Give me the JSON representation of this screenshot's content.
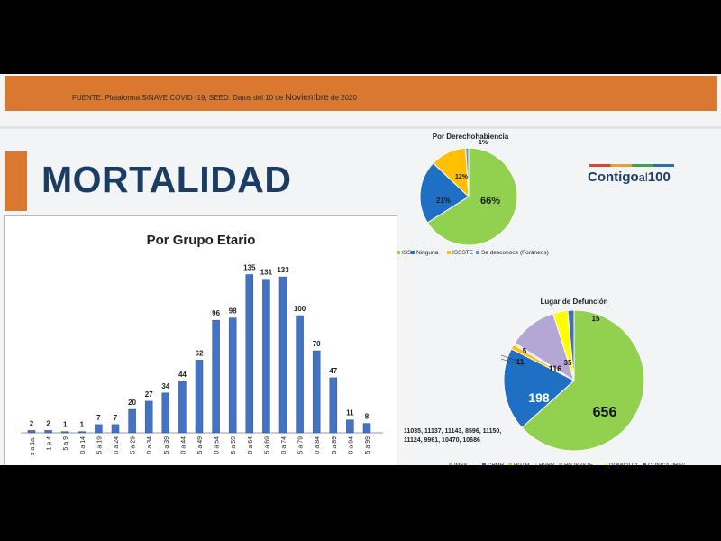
{
  "header": {
    "source_prefix": "FUENTE. Plataforma SINAVE COVID -19, SEED. Datos del 10 de",
    "source_month": "Noviembre",
    "source_suffix": "de 2020"
  },
  "title": "MORTALIDAD",
  "logo": {
    "main": "Contigo",
    "al": "al",
    "num": "100"
  },
  "colors": {
    "orange": "#d97830",
    "navy": "#1b3d63",
    "bar": "#4472c4",
    "green": "#92d050",
    "blue": "#1f6fc5",
    "yellow": "#ffc000",
    "lilac": "#b4a7d6"
  },
  "footnote": "11035, 11137, 11143, 8596, 11150, 11124, 9961, 10470, 10686",
  "chart_data": [
    {
      "type": "bar",
      "title": "Por Grupo Etario",
      "categories": [
        "< a 1a.",
        "1 a 4",
        "5 a 9",
        "10 a 14",
        "15 a 19",
        "20 a 24",
        "25 a 29",
        "30 a 34",
        "35 a 39",
        "40 a 44",
        "45 a 49",
        "50 a 54",
        "55 a 59",
        "60 a 64",
        "65 a 69",
        "70 a 74",
        "75 a 79",
        "80 a 84",
        "85 a 89",
        "90 a 94",
        "95 a 99"
      ],
      "tick_labels_visible": [
        "x a 1a.",
        "1 a 4",
        "5 a 9",
        "0 a 14",
        "5 a 19",
        "0 a 24",
        "5 a 29",
        "0 a 34",
        "5 a 39",
        "0 a 44",
        "5 a 49",
        "0 a 54",
        "5 a 59",
        "0 a 64",
        "5 a 69",
        "0 a 74",
        "5 a 79",
        "0 a 84",
        "5 a 89",
        "0 a 94",
        "5 a 99"
      ],
      "values": [
        2,
        2,
        1,
        1,
        7,
        7,
        20,
        27,
        34,
        44,
        62,
        96,
        98,
        135,
        131,
        133,
        100,
        70,
        47,
        11,
        8
      ],
      "ylim": [
        0,
        140
      ],
      "grid": false
    },
    {
      "type": "pie",
      "title": "Por Derechohabiencia",
      "slices": [
        {
          "label": "IMSS",
          "value": 66,
          "display": "66%",
          "color": "#92d050"
        },
        {
          "label": "Ninguna",
          "value": 21,
          "display": "21%",
          "color": "#1f6fc5"
        },
        {
          "label": "ISSSTE",
          "value": 12,
          "display": "12%",
          "color": "#ffc000"
        },
        {
          "label": "Se desconoce (Foráneos)",
          "value": 1,
          "display": "1%",
          "color": "#6b8fc9"
        }
      ],
      "legend_labels": [
        "ISS",
        "Ninguna",
        "ISSSTE",
        "Se desconoce (Foráneos)"
      ],
      "legend": "bottom"
    },
    {
      "type": "pie",
      "title": "Lugar de Defunción",
      "slices": [
        {
          "label": "IMSS",
          "value": 656,
          "display": "656",
          "color": "#92d050"
        },
        {
          "label": "CHMH",
          "value": 198,
          "display": "198",
          "color": "#1f6fc5"
        },
        {
          "label": "HGTM",
          "value": 11,
          "display": "11",
          "color": "#ffc000"
        },
        {
          "label": "HGBR",
          "value": 5,
          "display": "5",
          "color": "#dcdcdc"
        },
        {
          "label": "HG ISSSTE",
          "value": 116,
          "display": "116",
          "color": "#b4a7d6"
        },
        {
          "label": "DOMICILIO",
          "value": 35,
          "display": "35",
          "color": "#ffff00"
        },
        {
          "label": "CLINICA PRIVADA",
          "value": 15,
          "display": "15",
          "color": "#4a6fa5"
        }
      ],
      "legend_labels": [
        "IMSS",
        "CHMH",
        "HGTM",
        "HGBR",
        "HG ISSSTE",
        "DOMICILIO",
        "CLINICA PRIVADA"
      ],
      "legend": "bottom"
    }
  ]
}
